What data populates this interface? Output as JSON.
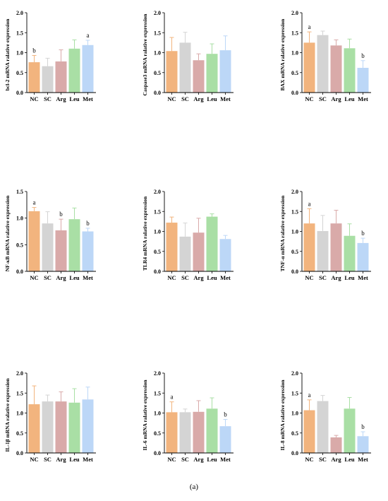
{
  "caption": "(a)",
  "colors": {
    "NC": "#f2b47e",
    "SC": "#d4d4d4",
    "Arg": "#d9aaa9",
    "Leu": "#a9dfa5",
    "Met": "#bcd7f7"
  },
  "chart_data": [
    {
      "type": "bar",
      "ylabel": "bcl-2 mRNA ralative expression",
      "categories": [
        "NC",
        "SC",
        "Arg",
        "Leu",
        "Met"
      ],
      "values": [
        0.76,
        0.66,
        0.78,
        1.1,
        1.19
      ],
      "errors": [
        0.17,
        0.2,
        0.29,
        0.22,
        0.12
      ],
      "letters": [
        "b",
        "",
        "",
        "",
        "a"
      ],
      "ylim": [
        0,
        2.0
      ],
      "yticks": [
        "0.0",
        "0.5",
        "1.0",
        "1.5",
        "2.0"
      ],
      "tickvals": [
        0,
        0.5,
        1.0,
        1.5,
        2.0
      ]
    },
    {
      "type": "bar",
      "ylabel": "Caspase3 mRNA ralative expression",
      "categories": [
        "NC",
        "SC",
        "Arg",
        "Leu",
        "Met"
      ],
      "values": [
        1.04,
        1.25,
        0.81,
        0.97,
        1.06
      ],
      "errors": [
        0.34,
        0.26,
        0.16,
        0.25,
        0.36
      ],
      "letters": [
        "",
        "",
        "",
        "",
        ""
      ],
      "ylim": [
        0,
        2.0
      ],
      "yticks": [
        "0.0",
        "0.5",
        "1.0",
        "1.5",
        "2.0"
      ],
      "tickvals": [
        0,
        0.5,
        1.0,
        1.5,
        2.0
      ]
    },
    {
      "type": "bar",
      "ylabel": "BAX mRNA ralative expression",
      "categories": [
        "NC",
        "SC",
        "Arg",
        "Leu",
        "Met"
      ],
      "values": [
        1.25,
        1.44,
        1.18,
        1.11,
        0.62
      ],
      "errors": [
        0.27,
        0.1,
        0.14,
        0.23,
        0.18
      ],
      "letters": [
        "a",
        "",
        "",
        "",
        "b"
      ],
      "ylim": [
        0,
        2.0
      ],
      "yticks": [
        "0.0",
        "0.5",
        "1.0",
        "1.5",
        "2.0"
      ],
      "tickvals": [
        0,
        0.5,
        1.0,
        1.5,
        2.0
      ]
    },
    {
      "type": "bar",
      "ylabel": "NF-κB mRNA ralative expression",
      "categories": [
        "NC",
        "SC",
        "Arg",
        "Leu",
        "Met"
      ],
      "values": [
        1.13,
        0.9,
        0.77,
        0.98,
        0.75
      ],
      "errors": [
        0.07,
        0.22,
        0.21,
        0.21,
        0.06
      ],
      "letters": [
        "a",
        "",
        "b",
        "",
        "b"
      ],
      "ylim": [
        0,
        1.5
      ],
      "yticks": [
        "0.0",
        "0.5",
        "1.0",
        "1.5"
      ],
      "tickvals": [
        0,
        0.5,
        1.0,
        1.5
      ]
    },
    {
      "type": "bar",
      "ylabel": "TLR4 mRNA ralative expression",
      "categories": [
        "NC",
        "SC",
        "Arg",
        "Leu",
        "Met"
      ],
      "values": [
        1.22,
        0.87,
        0.97,
        1.37,
        0.81
      ],
      "errors": [
        0.14,
        0.34,
        0.36,
        0.07,
        0.09
      ],
      "letters": [
        "",
        "",
        "",
        "",
        ""
      ],
      "ylim": [
        0,
        2.0
      ],
      "yticks": [
        "0.0",
        "0.5",
        "1.0",
        "1.5",
        "2.0"
      ],
      "tickvals": [
        0,
        0.5,
        1.0,
        1.5,
        2.0
      ]
    },
    {
      "type": "bar",
      "ylabel": "TNF-α mRNA ralative expression",
      "categories": [
        "NC",
        "SC",
        "Arg",
        "Leu",
        "Met"
      ],
      "values": [
        1.2,
        1.01,
        1.2,
        0.89,
        0.71
      ],
      "errors": [
        0.37,
        0.39,
        0.33,
        0.3,
        0.12
      ],
      "letters": [
        "a",
        "",
        "",
        "",
        "b"
      ],
      "ylim": [
        0,
        2.0
      ],
      "yticks": [
        "0.0",
        "0.5",
        "1.0",
        "1.5",
        "2.0"
      ],
      "tickvals": [
        0,
        0.5,
        1.0,
        1.5,
        2.0
      ]
    },
    {
      "type": "bar",
      "ylabel": "IL-1β mRNA ralative expression",
      "categories": [
        "NC",
        "SC",
        "Arg",
        "Leu",
        "Met"
      ],
      "values": [
        1.22,
        1.29,
        1.29,
        1.26,
        1.34
      ],
      "errors": [
        0.46,
        0.16,
        0.24,
        0.35,
        0.31
      ],
      "letters": [
        "",
        "",
        "",
        "",
        ""
      ],
      "ylim": [
        0,
        2.0
      ],
      "yticks": [
        "0.0",
        "0.5",
        "1.0",
        "1.5",
        "2.0"
      ],
      "tickvals": [
        0,
        0.5,
        1.0,
        1.5,
        2.0
      ]
    },
    {
      "type": "bar",
      "ylabel": "IL-6 mRNA ralative expression",
      "categories": [
        "NC",
        "SC",
        "Arg",
        "Leu",
        "Met"
      ],
      "values": [
        1.02,
        1.02,
        1.03,
        1.11,
        0.67
      ],
      "errors": [
        0.26,
        0.08,
        0.28,
        0.27,
        0.17
      ],
      "letters": [
        "a",
        "",
        "",
        "",
        "b"
      ],
      "ylim": [
        0,
        2.0
      ],
      "yticks": [
        "0.0",
        "0.5",
        "1.0",
        "1.5",
        "2.0"
      ],
      "tickvals": [
        0,
        0.5,
        1.0,
        1.5,
        2.0
      ]
    },
    {
      "type": "bar",
      "ylabel": "IL-8 mRNA ralative expression",
      "categories": [
        "NC",
        "SC",
        "Arg",
        "Leu",
        "Met"
      ],
      "values": [
        1.07,
        1.3,
        0.39,
        1.11,
        0.42
      ],
      "errors": [
        0.26,
        0.14,
        0.05,
        0.28,
        0.11
      ],
      "letters": [
        "a",
        "",
        "",
        "",
        "b"
      ],
      "ylim": [
        0,
        2.0
      ],
      "yticks": [
        "0.0",
        "0.5",
        "1.0",
        "1.5",
        "2.0"
      ],
      "tickvals": [
        0,
        0.5,
        1.0,
        1.5,
        2.0
      ]
    }
  ]
}
